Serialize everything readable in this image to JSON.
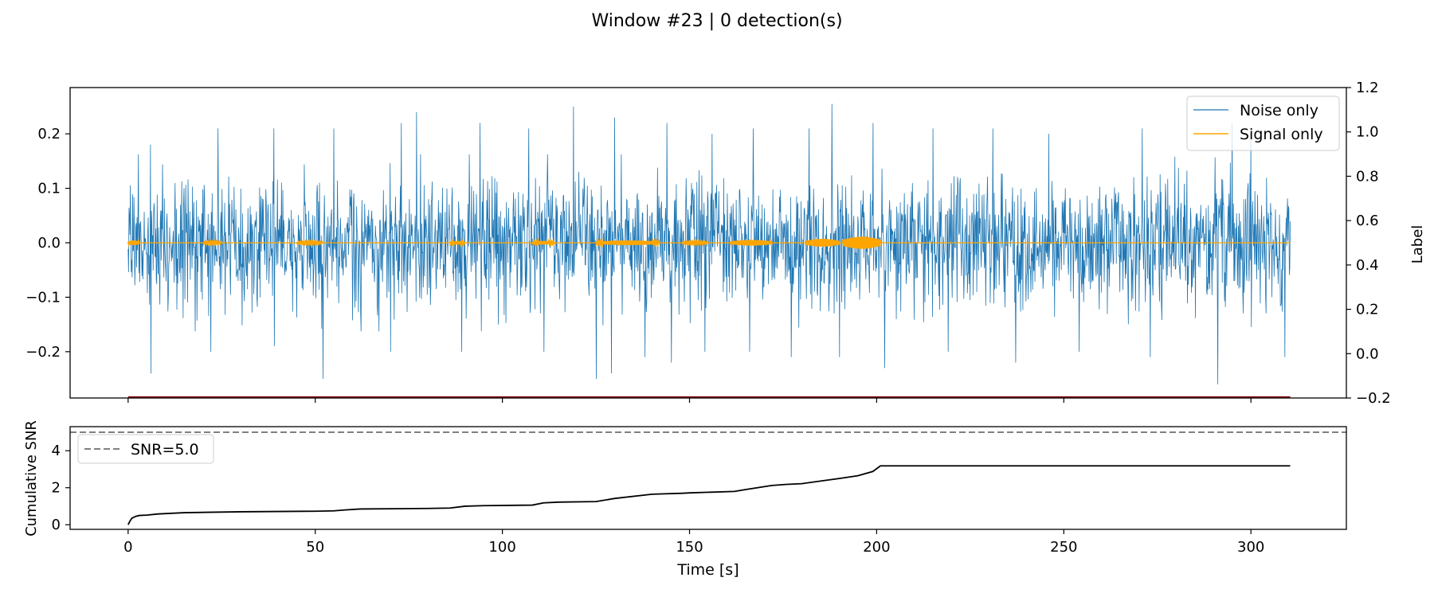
{
  "figure_title": "Window #23 | 0 detection(s)",
  "colors": {
    "noise": "#1f77b4",
    "signal": "#ffa500",
    "label": "#8b0000",
    "snr": "#000000",
    "threshold": "#808080"
  },
  "chart_data": [
    {
      "type": "line",
      "title": "",
      "xlabel": "",
      "ylabel": "",
      "xlim": [
        -15.5,
        325.5
      ],
      "ylim": [
        -0.285,
        0.285
      ],
      "yticks": [
        -0.2,
        -0.1,
        0.0,
        0.1,
        0.2
      ],
      "ytick_labels": [
        "−0.2",
        "−0.1",
        "0.0",
        "0.1",
        "0.2"
      ],
      "xticks": [
        0,
        50,
        100,
        150,
        200,
        250,
        300
      ],
      "grid": false,
      "legend": {
        "position": "top-right",
        "entries": [
          "Noise only",
          "Signal only"
        ]
      },
      "series": [
        {
          "name": "Noise only",
          "kind": "noise-band",
          "x_range": [
            0,
            310.5
          ],
          "typical_envelope": 0.13,
          "peaks": [
            {
              "x": 6,
              "y": 0.18
            },
            {
              "x": 24,
              "y": 0.21
            },
            {
              "x": 39,
              "y": 0.21
            },
            {
              "x": 55,
              "y": 0.21
            },
            {
              "x": 73,
              "y": 0.22
            },
            {
              "x": 77,
              "y": 0.24
            },
            {
              "x": 94,
              "y": 0.22
            },
            {
              "x": 107,
              "y": 0.21
            },
            {
              "x": 119,
              "y": 0.25
            },
            {
              "x": 130,
              "y": 0.23
            },
            {
              "x": 144,
              "y": 0.22
            },
            {
              "x": 156,
              "y": 0.2
            },
            {
              "x": 167,
              "y": 0.21
            },
            {
              "x": 182,
              "y": 0.21
            },
            {
              "x": 188,
              "y": 0.255
            },
            {
              "x": 199,
              "y": 0.22
            },
            {
              "x": 215,
              "y": 0.21
            },
            {
              "x": 231,
              "y": 0.21
            },
            {
              "x": 246,
              "y": 0.2
            },
            {
              "x": 271,
              "y": 0.21
            },
            {
              "x": 295,
              "y": 0.22
            },
            {
              "x": 300,
              "y": 0.19
            }
          ],
          "troughs": [
            {
              "x": 6,
              "y": -0.24
            },
            {
              "x": 22,
              "y": -0.2
            },
            {
              "x": 39,
              "y": -0.19
            },
            {
              "x": 52,
              "y": -0.25
            },
            {
              "x": 70,
              "y": -0.2
            },
            {
              "x": 89,
              "y": -0.2
            },
            {
              "x": 111,
              "y": -0.2
            },
            {
              "x": 125,
              "y": -0.25
            },
            {
              "x": 129,
              "y": -0.24
            },
            {
              "x": 138,
              "y": -0.21
            },
            {
              "x": 145,
              "y": -0.22
            },
            {
              "x": 154,
              "y": -0.2
            },
            {
              "x": 166,
              "y": -0.2
            },
            {
              "x": 177,
              "y": -0.21
            },
            {
              "x": 190,
              "y": -0.21
            },
            {
              "x": 202,
              "y": -0.23
            },
            {
              "x": 219,
              "y": -0.2
            },
            {
              "x": 237,
              "y": -0.22
            },
            {
              "x": 254,
              "y": -0.2
            },
            {
              "x": 273,
              "y": -0.21
            },
            {
              "x": 291,
              "y": -0.26
            },
            {
              "x": 309,
              "y": -0.21
            }
          ]
        },
        {
          "name": "Signal only",
          "kind": "bursts",
          "baseline": 0.0,
          "bursts": [
            {
              "start": 0,
              "end": 3,
              "amp": 0.004
            },
            {
              "start": 20,
              "end": 25,
              "amp": 0.002
            },
            {
              "start": 45,
              "end": 52,
              "amp": 0.002
            },
            {
              "start": 86,
              "end": 90,
              "amp": 0.003
            },
            {
              "start": 108,
              "end": 114,
              "amp": 0.003
            },
            {
              "start": 125,
              "end": 142,
              "amp": 0.004
            },
            {
              "start": 148,
              "end": 155,
              "amp": 0.002
            },
            {
              "start": 161,
              "end": 172,
              "amp": 0.005
            },
            {
              "start": 181,
              "end": 190,
              "amp": 0.007
            },
            {
              "start": 191,
              "end": 201,
              "amp": 0.011
            }
          ]
        }
      ]
    },
    {
      "type": "line",
      "role": "label-axis",
      "ylabel": "Label",
      "ylim": [
        -0.2,
        1.2
      ],
      "yticks": [
        -0.2,
        0.0,
        0.2,
        0.4,
        0.6,
        0.8,
        1.0,
        1.2
      ],
      "ytick_labels": [
        "−0.2",
        "0.0",
        "0.2",
        "0.4",
        "0.6",
        "0.8",
        "1.0",
        "1.2"
      ],
      "series": [
        {
          "name": "Label",
          "x": [
            0,
            310.5
          ],
          "y": [
            -0.2,
            -0.2
          ]
        }
      ]
    },
    {
      "type": "line",
      "title": "",
      "xlabel": "Time [s]",
      "ylabel": "Cumulative SNR",
      "xlim": [
        -15.5,
        325.5
      ],
      "ylim": [
        -0.25,
        5.3
      ],
      "yticks": [
        0,
        2,
        4
      ],
      "xticks": [
        0,
        50,
        100,
        150,
        200,
        250,
        300
      ],
      "xtick_labels": [
        "0",
        "50",
        "100",
        "150",
        "200",
        "250",
        "300"
      ],
      "grid": false,
      "legend": {
        "position": "top-left",
        "entries": [
          "SNR=5.0"
        ]
      },
      "threshold": {
        "label": "SNR=5.0",
        "y": 5.0
      },
      "series": [
        {
          "name": "Cumulative SNR",
          "x": [
            0,
            0.5,
            1,
            2,
            3,
            5,
            8,
            15,
            30,
            50,
            55,
            58,
            62,
            80,
            86,
            90,
            95,
            108,
            111,
            115,
            125,
            130,
            140,
            148,
            150,
            162,
            165,
            172,
            176,
            180,
            190,
            195,
            199,
            201,
            210,
            250,
            300,
            310.5
          ],
          "y": [
            0.0,
            0.2,
            0.35,
            0.45,
            0.5,
            0.52,
            0.58,
            0.65,
            0.7,
            0.73,
            0.75,
            0.8,
            0.85,
            0.88,
            0.9,
            1.0,
            1.03,
            1.06,
            1.18,
            1.22,
            1.25,
            1.42,
            1.65,
            1.7,
            1.72,
            1.8,
            1.9,
            2.12,
            2.18,
            2.22,
            2.5,
            2.65,
            2.88,
            3.18,
            3.18,
            3.18,
            3.18,
            3.18
          ]
        }
      ]
    }
  ]
}
